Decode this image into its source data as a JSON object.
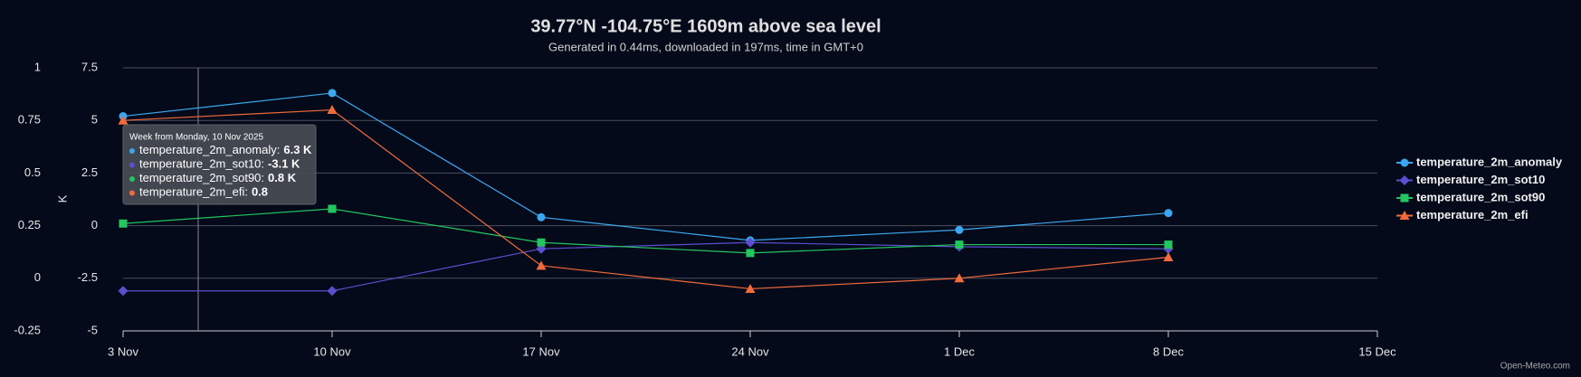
{
  "chart_data": {
    "type": "line",
    "title": "39.77°N -104.75°E 1609m above sea level",
    "subtitle": "Generated in 0.44ms, downloaded in 197ms, time in GMT+0",
    "y_label": "K",
    "credit": "Open-Meteo.com",
    "categories": [
      "3 Nov",
      "10 Nov",
      "17 Nov",
      "24 Nov",
      "1 Dec",
      "8 Dec",
      "15 Dec"
    ],
    "ylim": [
      -5,
      7.5
    ],
    "yticks": [
      -5,
      -2.5,
      0,
      2.5,
      5,
      7.5
    ],
    "y2lim": [
      -0.25,
      1
    ],
    "y2ticks": [
      -0.25,
      0,
      0.25,
      0.5,
      0.75,
      1
    ],
    "grid": true,
    "legend": "right",
    "series": [
      {
        "name": "temperature_2m_anomaly",
        "color": "#3ba7f0",
        "marker": "circle",
        "values": [
          5.2,
          6.3,
          0.4,
          -0.7,
          -0.2,
          0.6,
          null
        ]
      },
      {
        "name": "temperature_2m_sot10",
        "color": "#5b4fd0",
        "marker": "diamond",
        "values": [
          -3.1,
          -3.1,
          -1.1,
          -0.8,
          -1.0,
          -1.1,
          null
        ]
      },
      {
        "name": "temperature_2m_sot90",
        "color": "#22c55e",
        "marker": "square",
        "values": [
          0.1,
          0.8,
          -0.8,
          -1.3,
          -0.9,
          -0.9,
          null
        ]
      },
      {
        "name": "temperature_2m_efi",
        "color": "#f26b3a",
        "marker": "triangle",
        "axis": "y2",
        "values": [
          0.75,
          0.8,
          0.06,
          -0.05,
          0.0,
          0.1,
          null
        ]
      }
    ],
    "tooltip": {
      "title": "Week from Monday, 10 Nov 2025",
      "items": [
        {
          "label": "temperature_2m_anomaly:",
          "value": "6.3 K"
        },
        {
          "label": "temperature_2m_sot10:",
          "value": "-3.1 K"
        },
        {
          "label": "temperature_2m_sot90:",
          "value": "0.8 K"
        },
        {
          "label": "temperature_2m_efi:",
          "value": "0.8"
        }
      ]
    }
  }
}
